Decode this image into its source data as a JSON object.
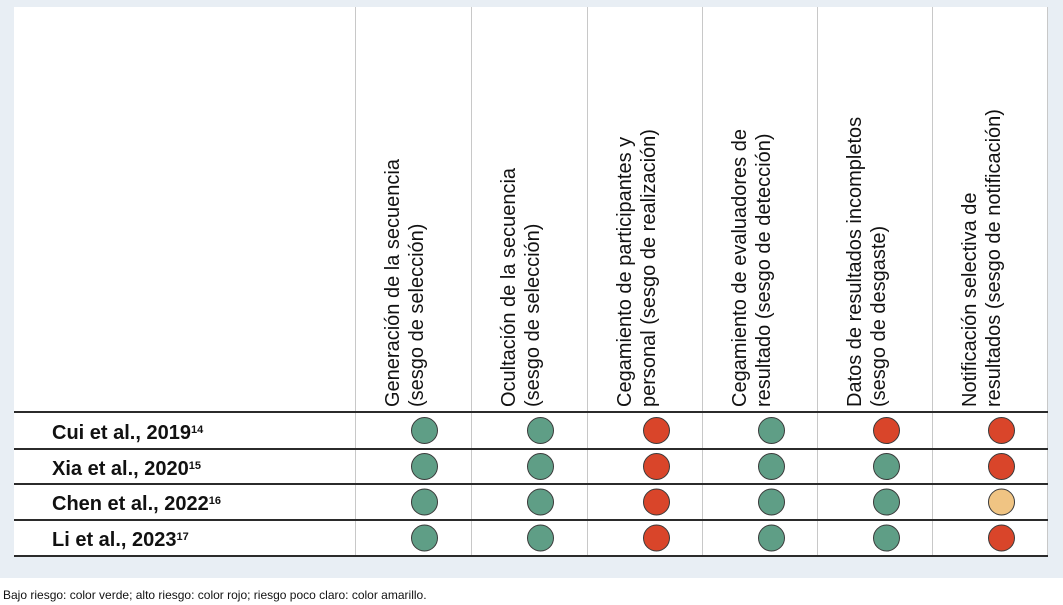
{
  "chart_data": {
    "type": "table",
    "columns": [
      {
        "line1": "Generación de la secuencia",
        "line2": "(sesgo de selección)"
      },
      {
        "line1": "Ocultación de la secuencia",
        "line2": "(sesgo de selección)"
      },
      {
        "line1": "Cegamiento de participantes y",
        "line2": "personal (sesgo de realización)"
      },
      {
        "line1": "Cegamiento de evaluadores de",
        "line2": "resultado (sesgo de detección)"
      },
      {
        "line1": "Datos de resultados incompletos",
        "line2": "(sesgo de desgaste)"
      },
      {
        "line1": "Notificación selectiva de",
        "line2": "resultados (sesgo de notificación)"
      }
    ],
    "rows": [
      {
        "study": "Cui et al., 2019",
        "ref": "14",
        "ratings": [
          "low",
          "low",
          "high",
          "low",
          "high",
          "high"
        ]
      },
      {
        "study": "Xia et al., 2020",
        "ref": "15",
        "ratings": [
          "low",
          "low",
          "high",
          "low",
          "low",
          "high"
        ]
      },
      {
        "study": "Chen et al., 2022",
        "ref": "16",
        "ratings": [
          "low",
          "low",
          "high",
          "low",
          "low",
          "unclear"
        ]
      },
      {
        "study": "Li et al., 2023",
        "ref": "17",
        "ratings": [
          "low",
          "low",
          "high",
          "low",
          "low",
          "high"
        ]
      }
    ],
    "colors": {
      "low": "#5f9e86",
      "high": "#d9452a",
      "unclear": "#f0c483"
    }
  },
  "footnote": "Bajo riesgo: color verde; alto riesgo: color rojo; riesgo poco claro: color amarillo."
}
